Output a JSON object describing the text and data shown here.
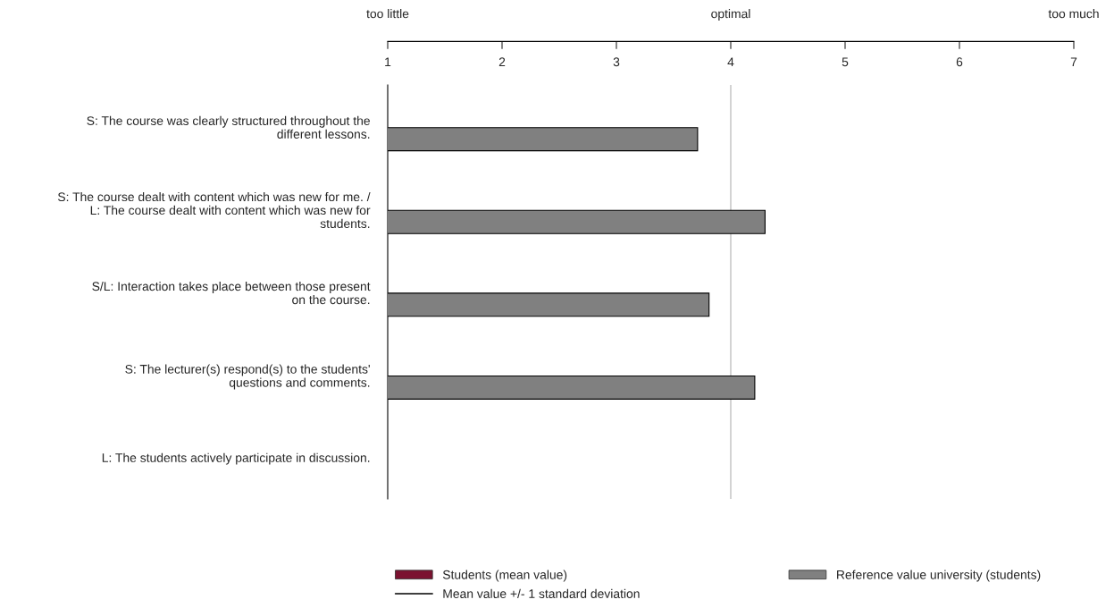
{
  "chart_data": {
    "type": "bar",
    "orientation": "horizontal",
    "categories": [
      "S: The course was clearly structured throughout the\ndifferent lessons.",
      "S: The course dealt with content which was new for me. /\nL: The course dealt with content which was new for\nstudents.",
      "S/L: Interaction takes place between those present\non the course.",
      "S: The lecturer(s) respond(s) to the students'\nquestions and comments.",
      "L: The students actively participate in discussion."
    ],
    "series": [
      {
        "name": "Students (mean value)",
        "color": "#7b1230",
        "values": [
          null,
          null,
          null,
          null,
          null
        ]
      },
      {
        "name": "Reference value university (students)",
        "color": "#808080",
        "values": [
          3.71,
          4.3,
          3.81,
          4.21,
          null
        ]
      }
    ],
    "xlim": [
      1,
      7
    ],
    "xticks": [
      1,
      2,
      3,
      4,
      5,
      6,
      7
    ],
    "ref_lines": [
      {
        "axis": "x",
        "value": 4,
        "color": "#c0c0c0"
      }
    ],
    "annotations": [
      "too little",
      "optimal",
      "too much",
      "Mean value +/- 1 standard deviation"
    ],
    "legend": "bottom",
    "grid": false
  }
}
